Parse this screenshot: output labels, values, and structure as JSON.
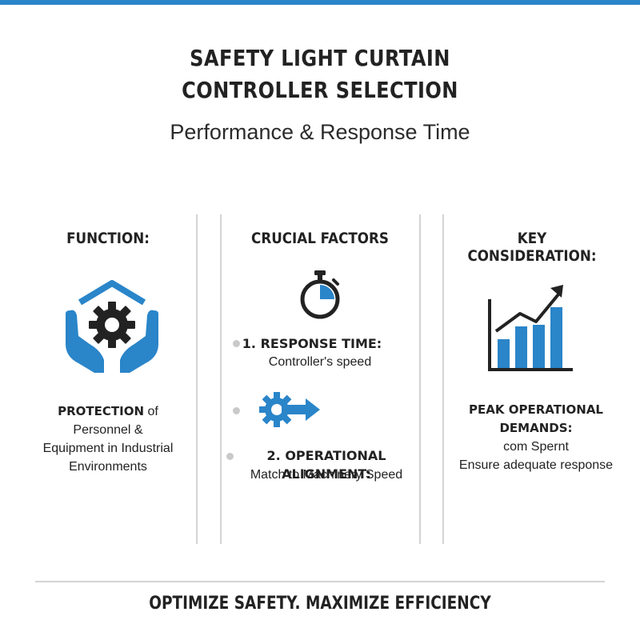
{
  "header": {
    "title_line1": "SAFETY LIGHT CURTAIN",
    "title_line2": "CONTROLLER SELECTION",
    "subtitle": "Performance & Response Time"
  },
  "columns": {
    "function": {
      "heading": "FUNCTION:",
      "icon": "hands-gear-shield-icon",
      "text_bold": "PROTECTION",
      "text_rest": " of",
      "line2": "Personnel &",
      "line3": "Equipment in Industrial",
      "line4": "Environments"
    },
    "factors": {
      "heading": "CRUCIAL FACTORS",
      "icon": "stopwatch-icon",
      "item1_title": "1. RESPONSE TIME:",
      "item1_desc": "Controller's speed",
      "middle_icon": "gear-arrow-icon",
      "item2_title": "2. OPERATIONAL ALIGNMENT:",
      "item2_desc": "Match to Machinery Speed"
    },
    "consideration": {
      "heading": "KEY CONSIDERATION:",
      "icon": "bar-chart-trend-icon",
      "line1": "PEAK OPERATIONAL",
      "line2": "DEMANDS:",
      "line3": "com Spernt",
      "line4": "Ensure adequate response"
    }
  },
  "footer": {
    "tagline": "OPTIMIZE SAFETY. MAXIMIZE EFFICIENCY"
  },
  "colors": {
    "accent": "#2a85c9",
    "dark": "#222222",
    "divider": "#d3d3d3"
  }
}
